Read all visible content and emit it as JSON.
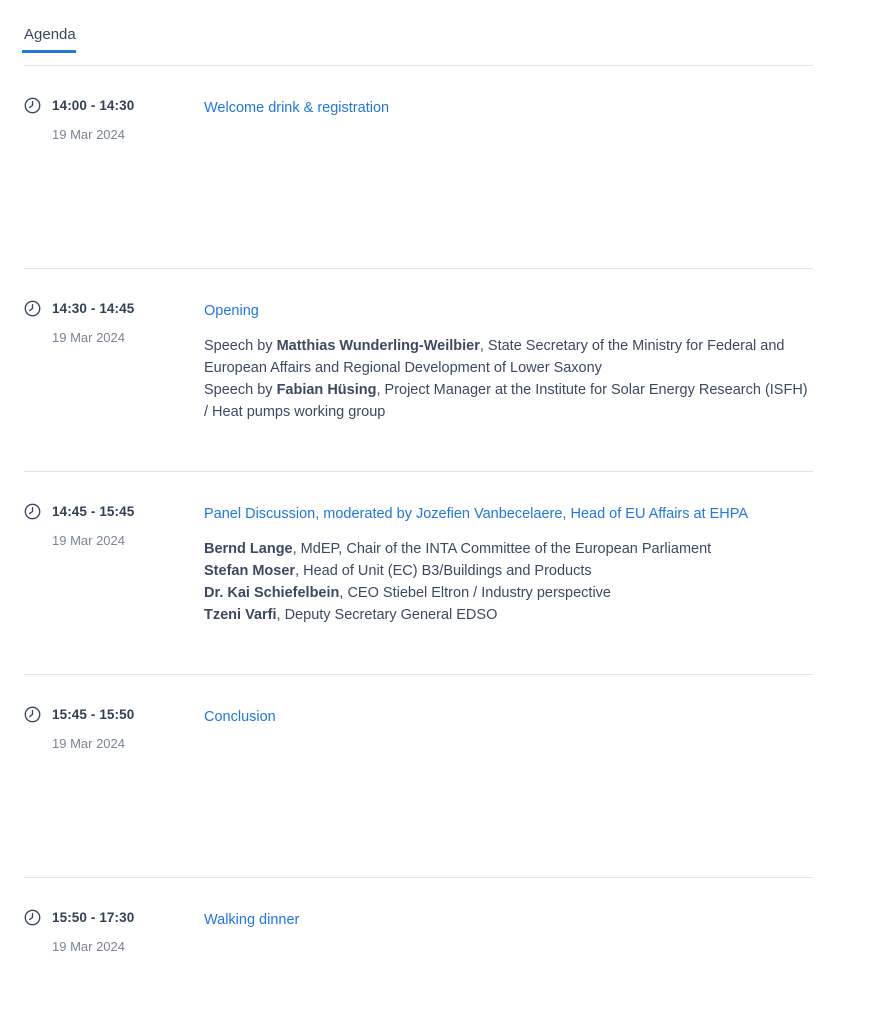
{
  "page": {
    "title": "Agenda"
  },
  "theme": {
    "accent_blue": "#2176e3",
    "dark_text": "#333f55",
    "body_text": "#3d4961",
    "muted_text": "#7b8494",
    "divider": "#e3e3e3"
  },
  "icons": {
    "clock": "clock-icon"
  },
  "agenda": {
    "items": [
      {
        "time": "14:00 - 14:30",
        "date": "19 Mar 2024",
        "title": "Welcome drink & registration",
        "description": []
      },
      {
        "time": "14:30 - 14:45",
        "date": "19 Mar 2024",
        "title": "Opening",
        "description": [
          [
            {
              "text": "Speech by ",
              "bold": false
            },
            {
              "text": "Matthias Wunderling-Weilbier",
              "bold": true
            },
            {
              "text": ", State Secretary of the Ministry for Federal and European Affairs and Regional Development of Lower Saxony",
              "bold": false
            }
          ],
          [
            {
              "text": "Speech by ",
              "bold": false
            },
            {
              "text": "Fabian Hüsing",
              "bold": true
            },
            {
              "text": ", Project Manager at the Institute for Solar Energy Research (ISFH) / Heat pumps working group",
              "bold": false
            }
          ]
        ]
      },
      {
        "time": "14:45 - 15:45",
        "date": "19 Mar 2024",
        "title": "Panel Discussion, moderated by Jozefien Vanbecelaere, Head of EU Affairs at EHPA",
        "description": [
          [
            {
              "text": "Bernd Lange",
              "bold": true
            },
            {
              "text": ", MdEP, Chair of the INTA Committee of the European Parliament",
              "bold": false
            }
          ],
          [
            {
              "text": "Stefan Moser",
              "bold": true
            },
            {
              "text": ", Head of Unit (EC) B3/Buildings and Products",
              "bold": false
            }
          ],
          [
            {
              "text": "Dr. Kai Schiefelbein",
              "bold": true
            },
            {
              "text": ", CEO Stiebel Eltron / Industry perspective",
              "bold": false
            }
          ],
          [
            {
              "text": "Tzeni Varfi",
              "bold": true
            },
            {
              "text": ", Deputy Secretary General EDSO",
              "bold": false
            }
          ]
        ]
      },
      {
        "time": "15:45 - 15:50",
        "date": "19 Mar 2024",
        "title": "Conclusion",
        "description": []
      },
      {
        "time": "15:50 - 17:30",
        "date": "19 Mar 2024",
        "title": "Walking dinner",
        "description": []
      }
    ]
  }
}
